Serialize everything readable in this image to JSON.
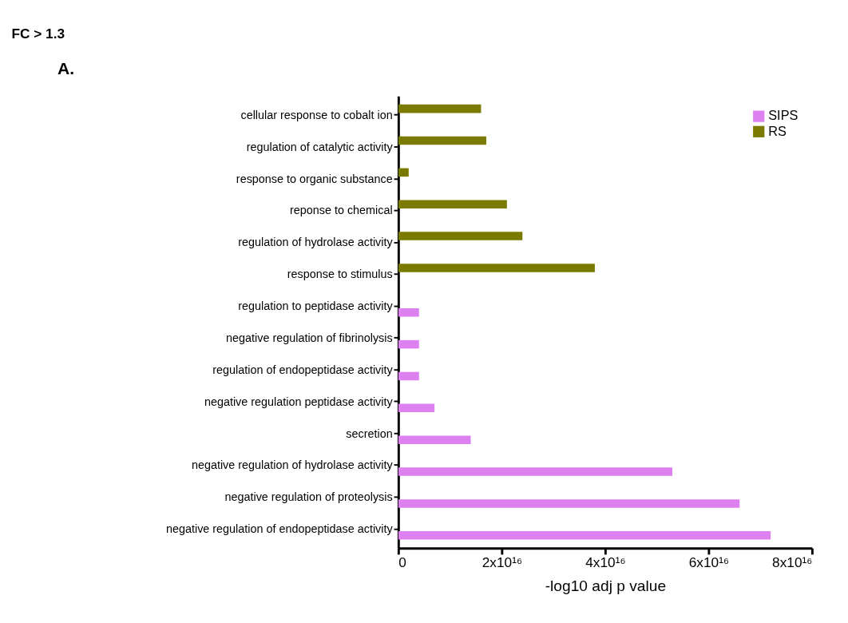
{
  "chart_data": {
    "type": "bar",
    "orientation": "horizontal",
    "title": "FC > 1.3",
    "xlabel": "-log10 adj p value",
    "annotations": [
      "A."
    ],
    "categories": [
      "cellular response to cobalt ion",
      "regulation of catalytic activity",
      "response to organic substance",
      "reponse to chemical",
      "regulation of hydrolase activity",
      "response to stimulus",
      "regulation to peptidase activity",
      "negative regulation of fibrinolysis",
      "regulation of endopeptidase activity",
      "negative regulation peptidase activity",
      "secretion",
      "negative regulation of hydrolase activity",
      "negative regulation of proteolysis",
      "negative regulation of endopeptidase activity"
    ],
    "series": [
      {
        "name": "SIPS",
        "color": "#dd80f0",
        "values": [
          null,
          null,
          null,
          null,
          null,
          null,
          4000000000000000.0,
          4000000000000000.0,
          4000000000000000.0,
          7000000000000000.0,
          1.4e+16,
          5.3e+16,
          6.6e+16,
          7.2e+16
        ]
      },
      {
        "name": "RS",
        "color": "#7a7a00",
        "values": [
          1.6e+16,
          1.7e+16,
          2000000000000000.0,
          2.1e+16,
          2.4e+16,
          3.8e+16,
          null,
          null,
          null,
          null,
          null,
          null,
          null,
          null
        ]
      }
    ],
    "xlim": [
      0,
      8e+16
    ],
    "xticks": [
      0,
      {
        "value": 2e+16,
        "label": "2x10¹⁶"
      },
      {
        "value": 4e+16,
        "label": "4x10¹⁶"
      },
      {
        "value": 6e+16,
        "label": "6x10¹⁶"
      },
      {
        "value": 8e+16,
        "label": "8x10¹⁶"
      }
    ],
    "grid": false,
    "legend": "top right"
  }
}
